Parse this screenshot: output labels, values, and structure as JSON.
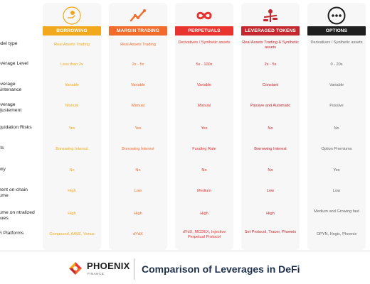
{
  "colors": {
    "borrowing": "#f2a81d",
    "margin_trading": "#f26b2a",
    "perpetuals": "#e8332f",
    "leveraged_tokens": "#c4262d",
    "options": "#1f1f1f"
  },
  "columns": [
    {
      "key": "borrowing",
      "header": "BORROWING",
      "icon": "money-hand-icon"
    },
    {
      "key": "margin_trading",
      "header": "MARGIN TRADING",
      "icon": "trend-line-icon"
    },
    {
      "key": "perpetuals",
      "header": "PERPETUALS",
      "icon": "infinity-icon"
    },
    {
      "key": "leveraged_tokens",
      "header": "LEVERAGED TOKENS",
      "icon": "balance-scale-icon"
    },
    {
      "key": "options",
      "header": "OPTIONS",
      "icon": "ellipsis-icon"
    }
  ],
  "rows": [
    {
      "label": "odel type",
      "cells": [
        "Real Assets Trading",
        "Real Assets Trading",
        "Derivatives / Synthetic assets",
        "Real Assets Trading & Synthetic assets",
        "Derivatives / Synthetic assets"
      ]
    },
    {
      "label": "everage Level",
      "cells": [
        "Less than 2x",
        "2x - 5x",
        "5x - 100x",
        "2x - 5x",
        "0 - 20x"
      ]
    },
    {
      "label": "everage aintenance",
      "cells": [
        "Variable",
        "Variable",
        "Variable",
        "Constant",
        "Variable"
      ]
    },
    {
      "label": "everage djustement",
      "cells": [
        "Manual",
        "Manual",
        "Manual",
        "Passive and Automatic",
        "Passive"
      ]
    },
    {
      "label": "iquidation Risks",
      "cells": [
        "Yes",
        "Yes",
        "Yes",
        "No",
        "No"
      ]
    },
    {
      "label": "sts",
      "cells": [
        "Borrowing Interest",
        "Borrowing Interest",
        "Funding Rate",
        "Borrowing Interest",
        "Option Premiums"
      ]
    },
    {
      "label": "piry",
      "cells": [
        "No",
        "No",
        "No",
        "No",
        "Yes"
      ]
    },
    {
      "label": "rrent on-chain lume",
      "cells": [
        "High",
        "Low",
        "Medium",
        "Low",
        "Low"
      ]
    },
    {
      "label": "lume on ntralized nues",
      "cells": [
        "High",
        "High",
        "High",
        "High",
        "Medium and Growing fast"
      ]
    },
    {
      "label": "Fi Platforms",
      "cells": [
        "Compound, AAVE, Venus",
        "dYdX",
        "dYdX, MCDEX, Injective Perpetual Protocol",
        "Set Protocol, Tracer, Phoenix",
        "OPYN, Hegic, Phoenix"
      ]
    }
  ],
  "footer": {
    "brand": "PHOENIX",
    "brand_sub": "FINANCE",
    "title": "Comparison of Leverages in DeFi"
  }
}
